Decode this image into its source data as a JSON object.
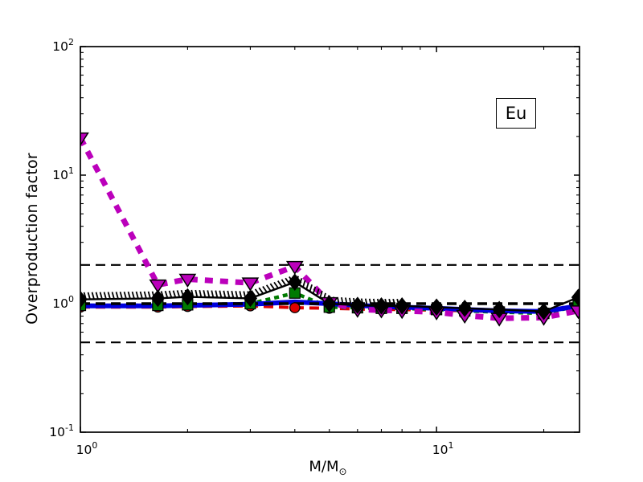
{
  "annotation": {
    "label": "Eu"
  },
  "axis_labels": {
    "y": "Overproduction factor",
    "x_main": "M/M",
    "x_sub": "⊙"
  },
  "chart_data": {
    "type": "line",
    "title": "",
    "xlabel": "M/M⊙",
    "ylabel": "Overproduction factor",
    "annotation": "Eu",
    "x_scale": "log",
    "y_scale": "log",
    "xlim": [
      1,
      25.2
    ],
    "ylim": [
      0.1,
      100
    ],
    "grid": false,
    "legend": "none",
    "frame_color": "#000000",
    "background": "#ffffff",
    "x_ticks": [
      {
        "value": 1,
        "exp": "0"
      },
      {
        "value": 10,
        "exp": "1"
      }
    ],
    "x_minor_ticks": [
      2,
      3,
      4,
      5,
      6,
      7,
      8,
      9,
      20
    ],
    "y_ticks": [
      {
        "value": 0.1,
        "exp": "-1"
      },
      {
        "value": 1,
        "exp": "0"
      },
      {
        "value": 10,
        "exp": "1"
      },
      {
        "value": 100,
        "exp": "2"
      }
    ],
    "y_minor_ticks": [
      0.2,
      0.3,
      0.4,
      0.5,
      0.6,
      0.7,
      0.8,
      0.9,
      2,
      3,
      4,
      5,
      6,
      7,
      8,
      9,
      20,
      30,
      40,
      50,
      60,
      70,
      80,
      90
    ],
    "reference_lines": [
      {
        "y": 2.0,
        "color": "#000000",
        "style": "dashed",
        "width": 2.2
      },
      {
        "y": 1.0,
        "color": "#000000",
        "style": "dashed",
        "width": 3.6
      },
      {
        "y": 0.5,
        "color": "#000000",
        "style": "dashed",
        "width": 2.2
      }
    ],
    "x": [
      1,
      1.65,
      2,
      3,
      4,
      5,
      6,
      7,
      8,
      10,
      12,
      15,
      20,
      25
    ],
    "series": [
      {
        "name": "model-red-dashed-circles",
        "color": "#dd0000",
        "linestyle": "dashed",
        "dash": [
          12,
          7
        ],
        "linewidth": 4,
        "marker": "circle",
        "marker_color": "#dd0000",
        "values": [
          0.94,
          0.94,
          0.95,
          0.96,
          0.93,
          0.92,
          0.91,
          0.9,
          0.9,
          0.89,
          0.88,
          0.87,
          0.86,
          0.98
        ]
      },
      {
        "name": "model-green-dashed-squares",
        "color": "#007a00",
        "linestyle": "dashed",
        "dash": [
          6,
          5
        ],
        "linewidth": 4.5,
        "marker": "square",
        "marker_color": "#007a00",
        "values": [
          0.97,
          0.97,
          0.98,
          1.0,
          1.21,
          0.94,
          0.93,
          0.92,
          0.92,
          0.9,
          0.88,
          0.86,
          0.84,
          0.96
        ]
      },
      {
        "name": "model-blue-solid",
        "color": "#0000dd",
        "linestyle": "solid",
        "dash": null,
        "linewidth": 6,
        "marker": "none",
        "marker_color": "#0000dd",
        "values": [
          0.96,
          0.96,
          0.97,
          0.99,
          1.03,
          1.0,
          0.97,
          0.95,
          0.94,
          0.92,
          0.9,
          0.88,
          0.87,
          0.96
        ]
      },
      {
        "name": "model-magenta-dashed-triangles",
        "color": "#bb00bb",
        "linestyle": "dashed",
        "dash": [
          10,
          9
        ],
        "linewidth": 7,
        "marker": "triangle-down",
        "marker_color": "#bb00bb",
        "values": [
          19.5,
          1.4,
          1.55,
          1.45,
          1.95,
          1.02,
          0.9,
          0.89,
          0.88,
          0.86,
          0.81,
          0.77,
          0.78,
          0.88
        ]
      },
      {
        "name": "model-black-hatched-diamonds",
        "color": "#000000",
        "linestyle": "solid",
        "dash": null,
        "linewidth": 2.4,
        "marker": "diamond",
        "marker_color": "#000000",
        "hatched": true,
        "hatch_until_x": 7.2,
        "values": [
          1.08,
          1.1,
          1.13,
          1.1,
          1.47,
          1.0,
          0.97,
          0.96,
          0.96,
          0.94,
          0.92,
          0.9,
          0.87,
          1.12
        ]
      }
    ]
  }
}
